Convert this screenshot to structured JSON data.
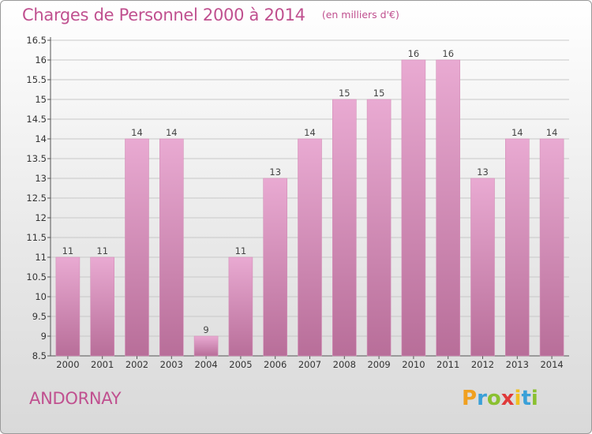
{
  "header": {
    "title": "Charges de Personnel 2000 à 2014",
    "unit": "(en milliers d'€)"
  },
  "footer": {
    "commune": "ANDORNAY",
    "logo": {
      "letters": [
        "P",
        "r",
        "o",
        "x",
        "i",
        "t",
        "i"
      ],
      "colors": [
        "#f0a020",
        "#3aa0d8",
        "#8ac030",
        "#e03a3a",
        "#f0c020",
        "#3aa0d8",
        "#8ac030"
      ]
    }
  },
  "colors": {
    "accent": "#c0508f",
    "bar_top": "#e9aad2",
    "bar_bottom": "#b86e99",
    "grid": "#c8c8c8"
  },
  "chart_data": {
    "type": "bar",
    "categories": [
      "2000",
      "2001",
      "2002",
      "2003",
      "2004",
      "2005",
      "2006",
      "2007",
      "2008",
      "2009",
      "2010",
      "2011",
      "2012",
      "2013",
      "2014"
    ],
    "values": [
      11,
      11,
      14,
      14,
      9,
      11,
      13,
      14,
      15,
      15,
      16,
      16,
      13,
      14,
      14
    ],
    "value_labels": [
      "11",
      "11",
      "14",
      "14",
      "9",
      "11",
      "13",
      "14",
      "15",
      "15",
      "16",
      "16",
      "13",
      "14",
      "14"
    ],
    "yticks": [
      "8.5",
      "9",
      "9.5",
      "10",
      "10.5",
      "11",
      "11.5",
      "12",
      "12.5",
      "13",
      "13.5",
      "14",
      "14.5",
      "15",
      "15.5",
      "16",
      "16.5"
    ],
    "ylim": [
      8.5,
      16.5
    ],
    "grid": true,
    "title": "Charges de Personnel 2000 à 2014",
    "xlabel": "",
    "ylabel": ""
  }
}
